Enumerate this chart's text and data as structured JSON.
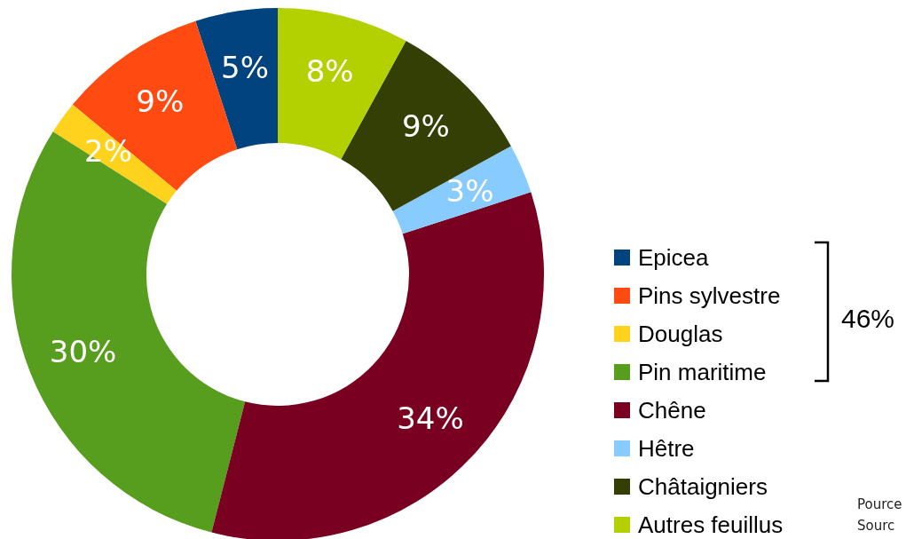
{
  "chart_data": {
    "type": "donut",
    "categories": [
      "Epicea",
      "Pins sylvestre",
      "Douglas",
      "Pin maritime",
      "Chêne",
      "Hêtre",
      "Châtaigniers",
      "Autres feuillus"
    ],
    "values": [
      5,
      9,
      2,
      30,
      34,
      3,
      9,
      8
    ],
    "colors": [
      "#00437f",
      "#ff4a12",
      "#ffd21e",
      "#589e1e",
      "#7a0022",
      "#88ccff",
      "#333f04",
      "#b3d000"
    ],
    "value_labels": [
      "5%",
      "9%",
      "2%",
      "30%",
      "34%",
      "3%",
      "9%",
      "8%"
    ],
    "legend": "right",
    "annotations": [
      "46%",
      "Pource",
      "Sourc"
    ]
  }
}
